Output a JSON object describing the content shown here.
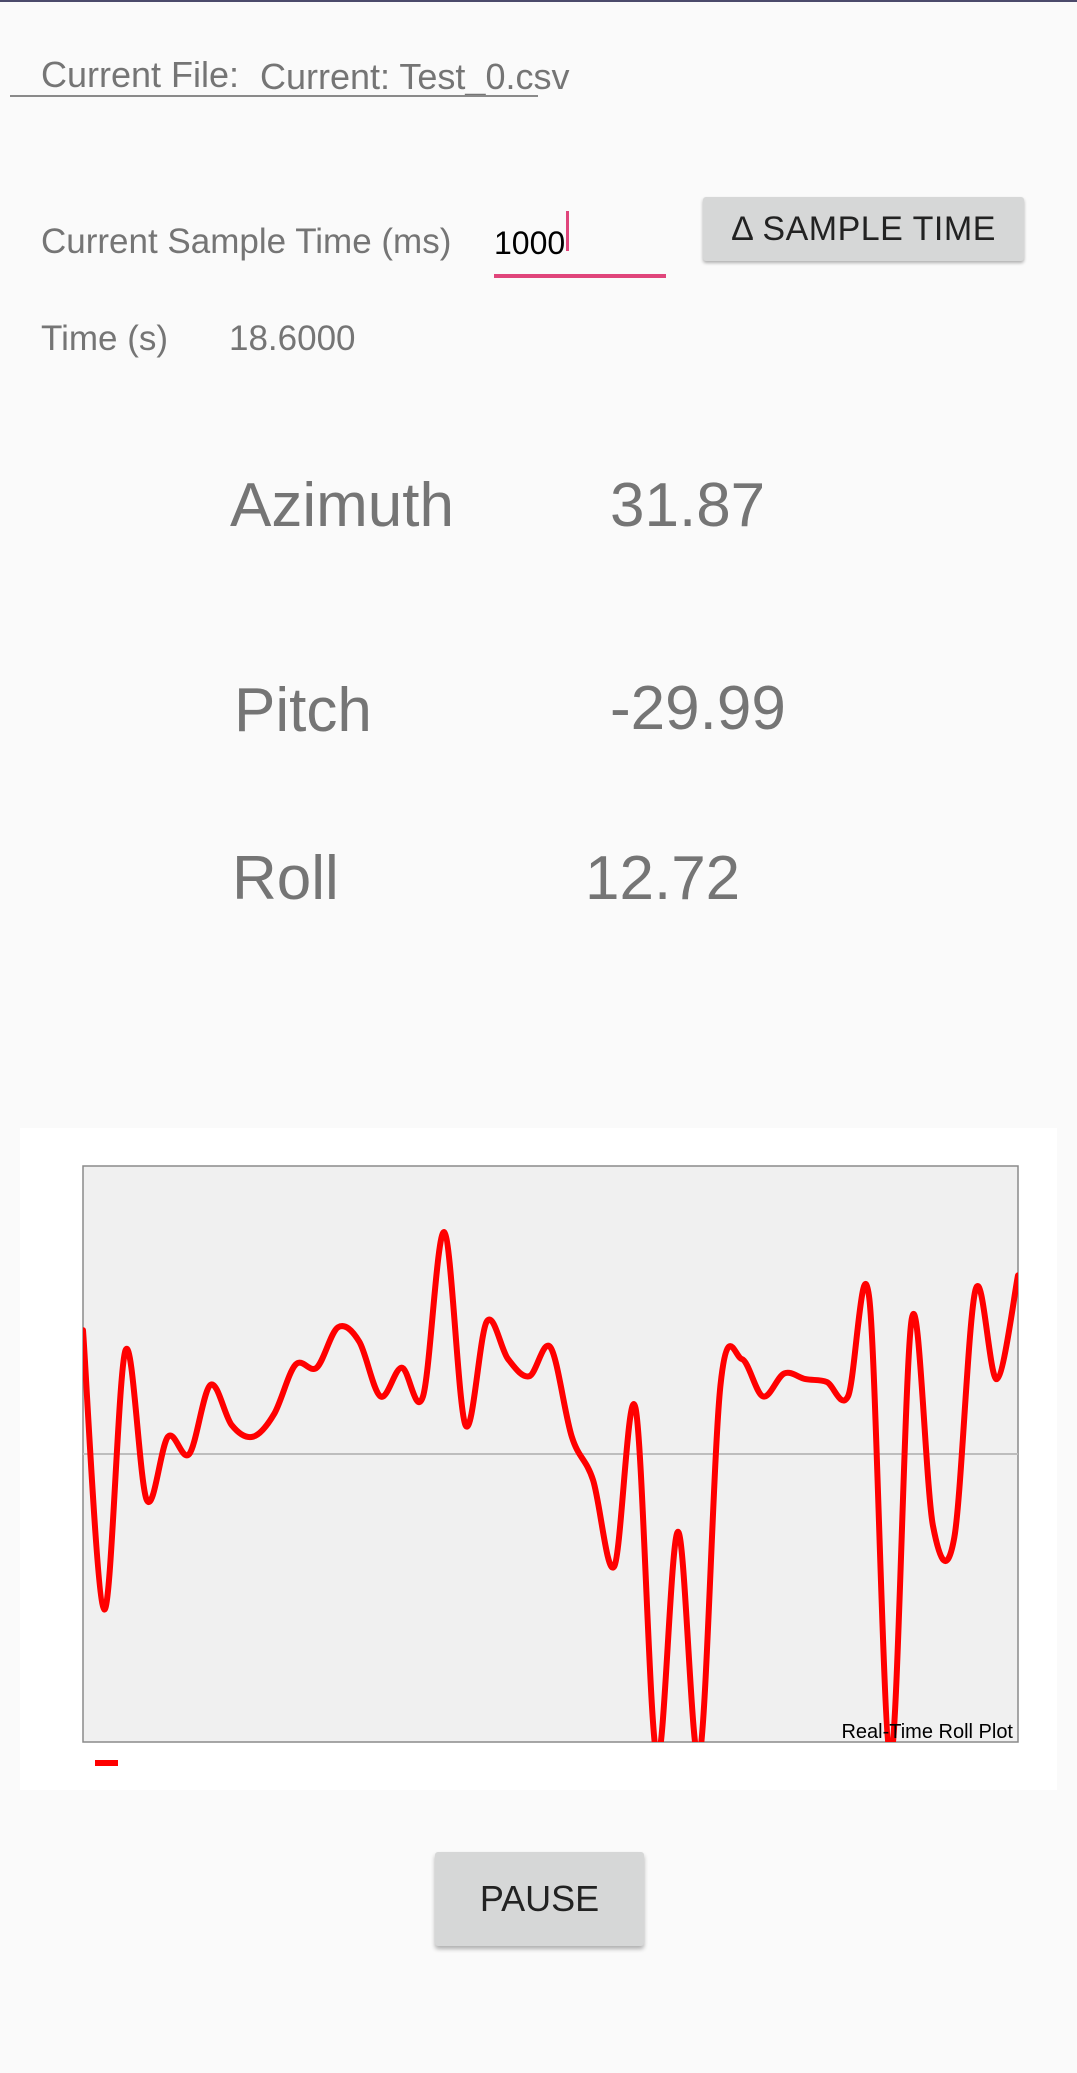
{
  "file": {
    "label": "Current File:",
    "value": "Current: Test_0.csv"
  },
  "sample": {
    "label": "Current Sample Time (ms)",
    "value": "1000",
    "button_label": "Δ SAMPLE TIME"
  },
  "time": {
    "label": "Time (s)",
    "value": "18.6000"
  },
  "readings": {
    "azimuth": {
      "label": "Azimuth",
      "value": "31.87"
    },
    "pitch": {
      "label": "Pitch",
      "value": "-29.99"
    },
    "roll": {
      "label": "Roll",
      "value": "12.72"
    }
  },
  "chart_data": {
    "type": "line",
    "title": "Real-Time Roll Plot",
    "line_color": "#ff0000",
    "ylim": [
      -1,
      1
    ],
    "grid": "zero-line",
    "series": [
      {
        "values": [
          0.43,
          -0.54,
          0.36,
          -0.16,
          0.06,
          0.0,
          0.24,
          0.1,
          0.06,
          0.14,
          0.31,
          0.3,
          0.44,
          0.39,
          0.2,
          0.3,
          0.2,
          0.77,
          0.1,
          0.46,
          0.33,
          0.27,
          0.37,
          0.06,
          -0.09,
          -0.39,
          0.16,
          -1.05,
          -0.27,
          -1.05,
          0.24,
          0.33,
          0.2,
          0.28,
          0.26,
          0.25,
          0.2,
          0.54,
          -1.05,
          0.47,
          -0.25,
          -0.29,
          0.57,
          0.26,
          0.62
        ]
      }
    ]
  },
  "pause": {
    "label": "PAUSE"
  }
}
